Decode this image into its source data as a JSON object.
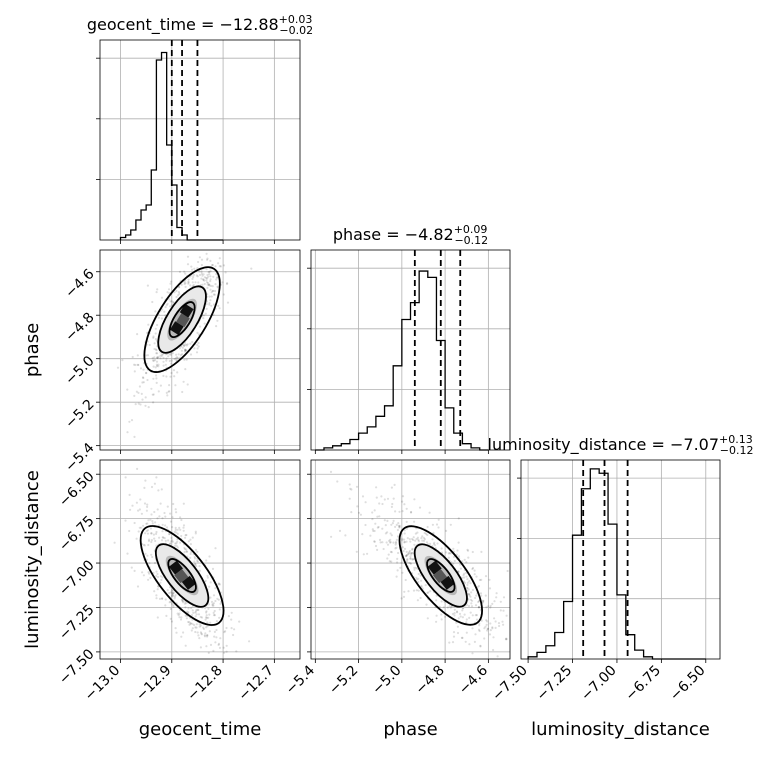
{
  "chart_data": {
    "type": "corner",
    "parameters": [
      {
        "name": "geocent_time",
        "median": "−12.88",
        "plus": "+0.03",
        "minus": "−0.02",
        "title_prefix": "geocent_time = ",
        "range": [
          -13.04,
          -12.65
        ],
        "ticks": [
          -13.0,
          -12.9,
          -12.8,
          -12.7
        ],
        "tick_labels": [
          "−13.0",
          "−12.9",
          "−12.8",
          "−12.7"
        ],
        "quantiles": [
          -12.9,
          -12.88,
          -12.85
        ],
        "hist_edges_start": -13.0,
        "hist_bin": 0.01,
        "hist_values": [
          1,
          2,
          4,
          8,
          12,
          14,
          28,
          72,
          75,
          38,
          22,
          5,
          2,
          0,
          0,
          0,
          0,
          0,
          0,
          0
        ],
        "hist_ymax": 80
      },
      {
        "name": "phase",
        "median": "−4.82",
        "plus": "+0.09",
        "minus": "−0.12",
        "title_prefix": "phase = ",
        "range": [
          -5.42,
          -4.5
        ],
        "ticks": [
          -5.4,
          -5.2,
          -5.0,
          -4.8,
          -4.6
        ],
        "tick_labels": [
          "−5.4",
          "−5.2",
          "−5.0",
          "−4.8",
          "−4.6"
        ],
        "quantiles": [
          -4.94,
          -4.82,
          -4.73
        ],
        "hist_edges_start": -5.4,
        "hist_bin": 0.04,
        "hist_values": [
          0,
          1,
          2,
          3,
          5,
          8,
          11,
          16,
          21,
          40,
          62,
          70,
          85,
          82,
          52,
          20,
          8,
          3,
          1,
          0
        ],
        "hist_ymax": 95
      },
      {
        "name": "luminosity_distance",
        "median": "−7.07",
        "plus": "+0.13",
        "minus": "−0.12",
        "title_prefix": "luminosity_distance = ",
        "range": [
          -7.54,
          -6.42
        ],
        "ticks": [
          -7.5,
          -7.25,
          -7.0,
          -6.75,
          -6.5
        ],
        "tick_labels": [
          "−7.50",
          "−7.25",
          "−7.00",
          "−6.75",
          "−6.50"
        ],
        "quantiles": [
          -7.19,
          -7.07,
          -6.94
        ],
        "hist_edges_start": -7.5,
        "hist_bin": 0.05,
        "hist_values": [
          1,
          3,
          6,
          12,
          26,
          56,
          77,
          86,
          84,
          61,
          29,
          11,
          4,
          1,
          0,
          0,
          0,
          0,
          0,
          0
        ],
        "hist_ymax": 90
      }
    ],
    "axis_labels": [
      "geocent_time",
      "phase",
      "luminosity_distance"
    ],
    "grid": true
  }
}
